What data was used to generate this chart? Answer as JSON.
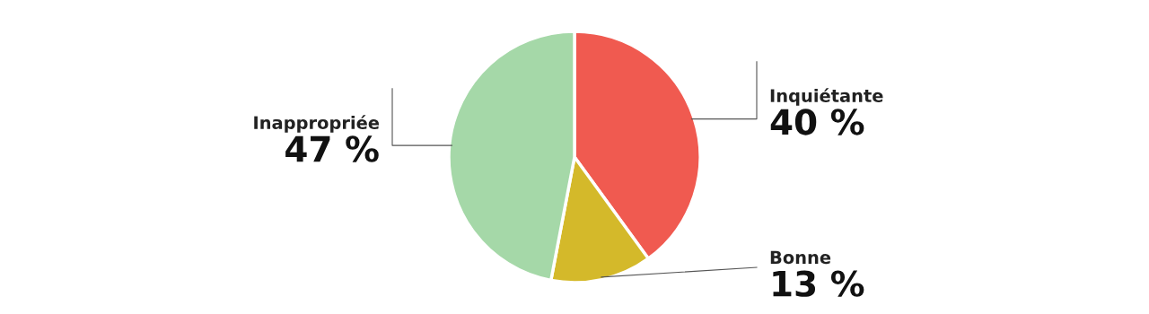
{
  "chart_data": {
    "type": "pie",
    "categories": [
      "Inquiétante",
      "Bonne",
      "Inappropriée"
    ],
    "values": [
      40,
      13,
      47
    ],
    "value_labels": [
      "40 %",
      "13 %",
      "47 %"
    ],
    "colors": [
      "#f05a50",
      "#d4b92a",
      "#a5d8a8"
    ]
  }
}
